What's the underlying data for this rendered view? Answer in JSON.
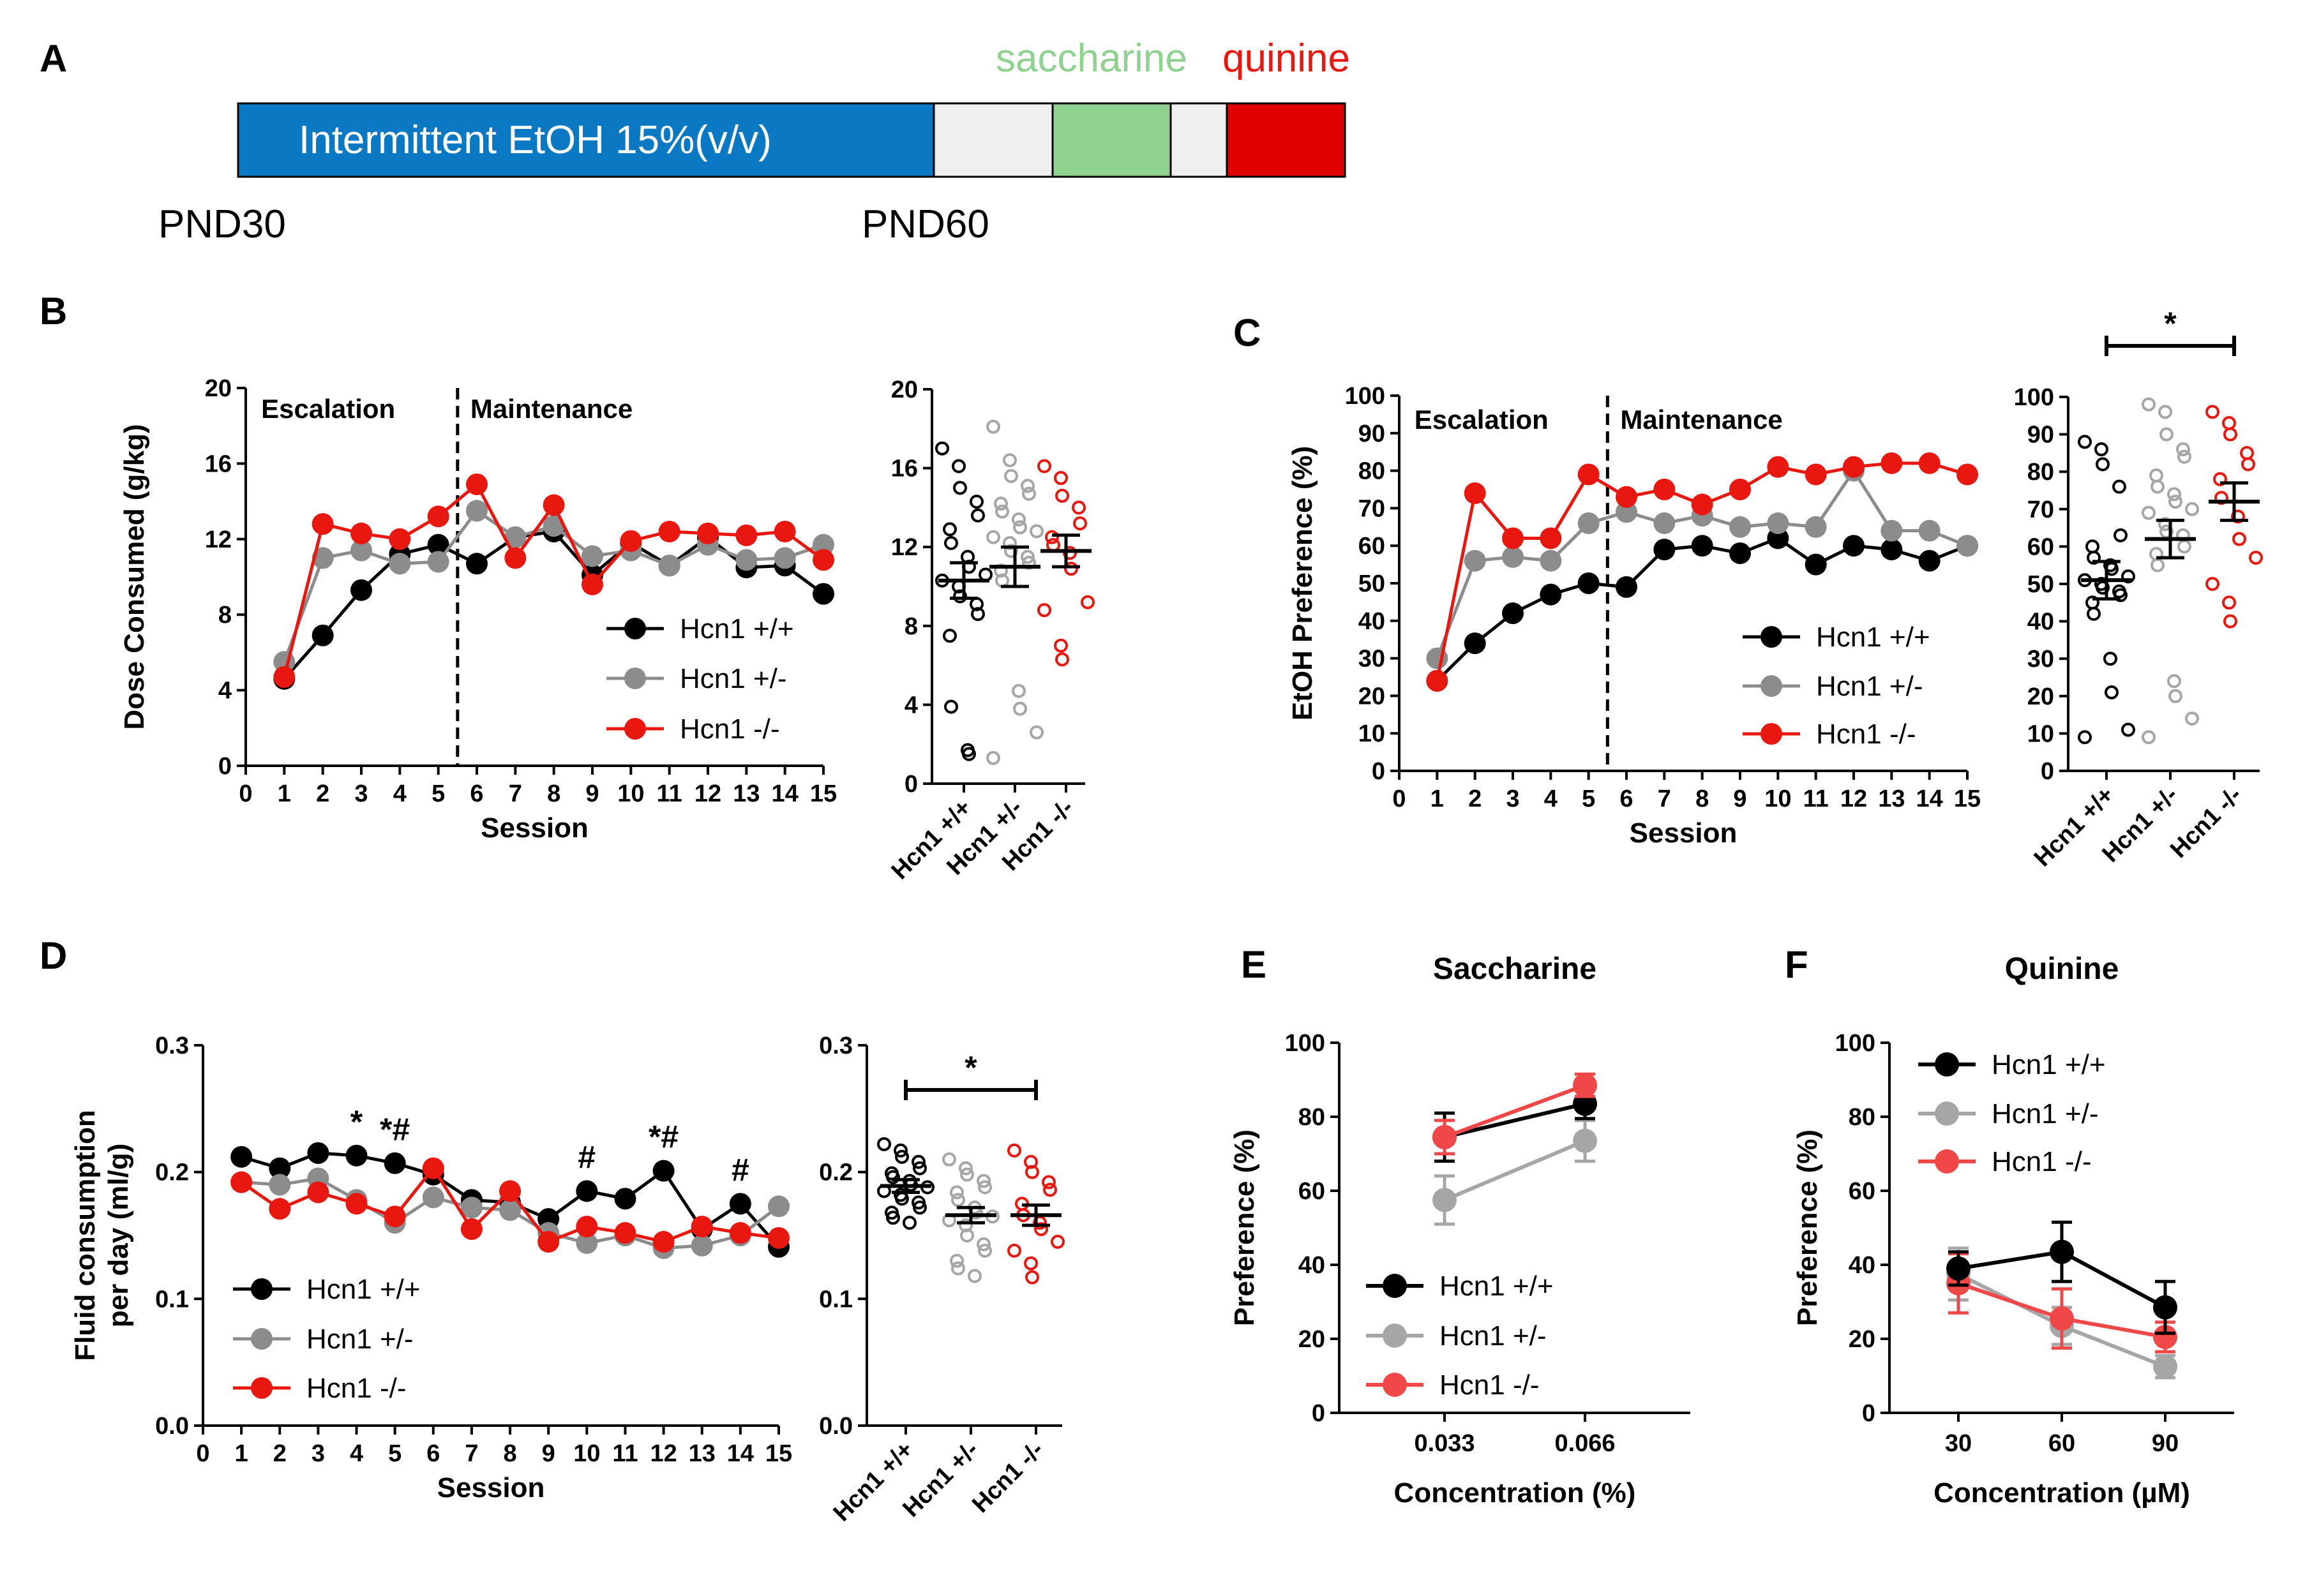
{
  "colors": {
    "wt": "#000000",
    "het": "#8c8c8c",
    "ko": "#e8170f",
    "het_light": "#a6a6a6",
    "ko_light": "#f04848",
    "ethanol": "#0a78c2",
    "saccharine": "#8fd18f",
    "quinine": "#e00000",
    "blank": "#efefef",
    "sacch_text": "#8fd18f",
    "quin_text": "#e8170f"
  },
  "panel_a": {
    "letter": "A",
    "ethanol_label": "Intermittent EtOH 15%(v/v)",
    "saccharine_label": "saccharine",
    "quinine_label": "quinine",
    "pnd_start": "PND30",
    "pnd_end": "PND60"
  },
  "chart_data": [
    {
      "id": "B_line",
      "panel": "B",
      "type": "line",
      "title": "",
      "xlabel": "Session",
      "ylabel": "Dose Consumed (g/kg)",
      "xlim": [
        0,
        15
      ],
      "ylim": [
        0,
        20
      ],
      "xticks": [
        "0",
        "1",
        "2",
        "3",
        "4",
        "5",
        "6",
        "7",
        "8",
        "9",
        "10",
        "11",
        "12",
        "13",
        "14",
        "15"
      ],
      "yticks": [
        "0",
        "4",
        "8",
        "12",
        "16",
        "20"
      ],
      "phases": [
        "Escalation",
        "Maintenance"
      ],
      "x": [
        1,
        2,
        3,
        4,
        5,
        6,
        7,
        8,
        9,
        10,
        11,
        12,
        13,
        14,
        15
      ],
      "series": [
        {
          "name": "Hcn1 +/+",
          "values": [
            4.6,
            6.9,
            9.3,
            11.2,
            11.7,
            10.7,
            12.1,
            12.4,
            10.1,
            11.8,
            10.6,
            12.1,
            10.5,
            10.6,
            9.1
          ]
        },
        {
          "name": "Hcn1 +/-",
          "values": [
            5.5,
            11.0,
            11.4,
            10.7,
            10.8,
            13.5,
            12.1,
            12.7,
            11.1,
            11.4,
            10.6,
            11.7,
            10.9,
            11.0,
            11.7
          ]
        },
        {
          "name": "Hcn1 -/-",
          "values": [
            4.7,
            12.8,
            12.3,
            12.0,
            13.2,
            14.9,
            11.0,
            13.8,
            9.6,
            11.9,
            12.4,
            12.3,
            12.2,
            12.4,
            10.9
          ]
        }
      ]
    },
    {
      "id": "B_scatter",
      "panel": "B",
      "type": "scatter",
      "ylim": [
        0,
        20
      ],
      "yticks": [
        "0",
        "4",
        "8",
        "12",
        "16",
        "20"
      ],
      "categories": [
        "Hcn1 +/+",
        "Hcn1 +/-",
        "Hcn1 -/-"
      ],
      "means": [
        10.3,
        11.0,
        11.8
      ],
      "sems": [
        0.9,
        1.0,
        0.8
      ],
      "points": [
        [
          17.0,
          16.1,
          15.0,
          14.3,
          13.6,
          12.9,
          12.2,
          11.5,
          11.0,
          10.6,
          10.3,
          10.0,
          9.5,
          9.1,
          8.6,
          7.5,
          3.9,
          1.7,
          1.5
        ],
        [
          18.1,
          16.4,
          15.6,
          15.1,
          14.7,
          14.2,
          13.8,
          13.4,
          13.0,
          12.8,
          12.5,
          12.2,
          11.8,
          11.5,
          11.2,
          10.8,
          10.3,
          4.7,
          3.8,
          2.6,
          1.3
        ],
        [
          16.1,
          15.5,
          14.6,
          14.0,
          13.2,
          12.5,
          12.1,
          11.7,
          10.9,
          9.2,
          8.8,
          7.0,
          6.3
        ]
      ]
    },
    {
      "id": "C_line",
      "panel": "C",
      "type": "line",
      "xlabel": "Session",
      "ylabel": "EtOH Preference (%)",
      "xlim": [
        0,
        15
      ],
      "ylim": [
        0,
        100
      ],
      "xticks": [
        "0",
        "1",
        "2",
        "3",
        "4",
        "5",
        "6",
        "7",
        "8",
        "9",
        "10",
        "11",
        "12",
        "13",
        "14",
        "15"
      ],
      "yticks": [
        "0",
        "10",
        "20",
        "30",
        "40",
        "50",
        "60",
        "70",
        "80",
        "90",
        "100"
      ],
      "phases": [
        "Escalation",
        "Maintenance"
      ],
      "x": [
        1,
        2,
        3,
        4,
        5,
        6,
        7,
        8,
        9,
        10,
        11,
        12,
        13,
        14,
        15
      ],
      "series": [
        {
          "name": "Hcn1 +/+",
          "values": [
            24,
            34,
            42,
            47,
            50,
            49,
            59,
            60,
            58,
            62,
            55,
            60,
            59,
            56,
            60
          ]
        },
        {
          "name": "Hcn1 +/-",
          "values": [
            30,
            56,
            57,
            56,
            66,
            69,
            66,
            68,
            65,
            66,
            65,
            80,
            64,
            64,
            60
          ]
        },
        {
          "name": "Hcn1 -/-",
          "values": [
            24,
            74,
            62,
            62,
            79,
            73,
            75,
            71,
            75,
            81,
            79,
            81,
            82,
            82,
            79
          ]
        }
      ]
    },
    {
      "id": "C_scatter",
      "panel": "C",
      "type": "scatter",
      "ylim": [
        0,
        100
      ],
      "yticks": [
        "0",
        "10",
        "20",
        "30",
        "40",
        "50",
        "60",
        "70",
        "80",
        "90",
        "100"
      ],
      "categories": [
        "Hcn1 +/+",
        "Hcn1 +/-",
        "Hcn1 -/-"
      ],
      "means": [
        51,
        62,
        72
      ],
      "sems": [
        5,
        5,
        5
      ],
      "significance": "*",
      "points": [
        [
          88,
          86,
          82,
          76,
          63,
          60,
          57,
          55,
          54,
          52,
          51,
          50,
          49,
          48,
          47,
          45,
          42,
          30,
          21,
          11,
          9
        ],
        [
          98,
          96,
          90,
          86,
          84,
          79,
          76,
          74,
          72,
          70,
          69,
          66,
          64,
          63,
          60,
          58,
          55,
          24,
          20,
          14,
          9
        ],
        [
          96,
          93,
          90,
          85,
          82,
          78,
          73,
          68,
          62,
          57,
          50,
          45,
          40
        ]
      ]
    },
    {
      "id": "D_line",
      "panel": "D",
      "type": "line",
      "xlabel": "Session",
      "ylabel": "Fluid consumption per day (ml/g)",
      "xlim": [
        0,
        15
      ],
      "ylim": [
        0,
        0.3
      ],
      "xticks": [
        "0",
        "1",
        "2",
        "3",
        "4",
        "5",
        "6",
        "7",
        "8",
        "9",
        "10",
        "11",
        "12",
        "13",
        "14",
        "15"
      ],
      "yticks": [
        "0.0",
        "0.1",
        "0.2",
        "0.3"
      ],
      "x": [
        1,
        2,
        3,
        4,
        5,
        6,
        7,
        8,
        9,
        10,
        11,
        12,
        13,
        14,
        15
      ],
      "series": [
        {
          "name": "Hcn1 +/+",
          "values": [
            0.212,
            0.203,
            0.215,
            0.213,
            0.207,
            0.198,
            0.178,
            0.176,
            0.163,
            0.185,
            0.179,
            0.201,
            0.155,
            0.175,
            0.141
          ]
        },
        {
          "name": "Hcn1 +/-",
          "values": [
            0.192,
            0.19,
            0.195,
            0.178,
            0.16,
            0.18,
            0.172,
            0.17,
            0.152,
            0.144,
            0.15,
            0.14,
            0.142,
            0.15,
            0.173
          ]
        },
        {
          "name": "Hcn1 -/-",
          "values": [
            0.192,
            0.171,
            0.184,
            0.175,
            0.165,
            0.203,
            0.155,
            0.185,
            0.145,
            0.157,
            0.152,
            0.145,
            0.157,
            0.152,
            0.148
          ]
        }
      ],
      "annotations": [
        {
          "x": 4,
          "text": "*"
        },
        {
          "x": 5,
          "text": "*#"
        },
        {
          "x": 10,
          "text": "#"
        },
        {
          "x": 12,
          "text": "*#"
        },
        {
          "x": 14,
          "text": "#"
        }
      ]
    },
    {
      "id": "D_scatter",
      "panel": "D",
      "type": "scatter",
      "ylim": [
        0,
        0.3
      ],
      "yticks": [
        "0.0",
        "0.1",
        "0.2",
        "0.3"
      ],
      "categories": [
        "Hcn1 +/+",
        "Hcn1 +/-",
        "Hcn1 -/-"
      ],
      "means": [
        0.189,
        0.166,
        0.166
      ],
      "sems": [
        0.005,
        0.006,
        0.008
      ],
      "significance": "*",
      "points": [
        [
          0.222,
          0.217,
          0.212,
          0.208,
          0.203,
          0.199,
          0.196,
          0.193,
          0.19,
          0.188,
          0.185,
          0.182,
          0.179,
          0.176,
          0.172,
          0.168,
          0.164,
          0.16
        ],
        [
          0.21,
          0.203,
          0.198,
          0.193,
          0.188,
          0.184,
          0.178,
          0.172,
          0.168,
          0.165,
          0.162,
          0.158,
          0.15,
          0.143,
          0.138,
          0.13,
          0.124,
          0.118
        ],
        [
          0.217,
          0.208,
          0.2,
          0.192,
          0.186,
          0.175,
          0.166,
          0.16,
          0.155,
          0.145,
          0.138,
          0.128,
          0.117
        ]
      ]
    },
    {
      "id": "E",
      "panel": "E",
      "type": "line",
      "title": "Saccharine",
      "xlabel": "Concentration (%)",
      "ylabel": "Preference (%)",
      "categories": [
        "0.033",
        "0.066"
      ],
      "ylim": [
        0,
        100
      ],
      "yticks": [
        "0",
        "20",
        "40",
        "60",
        "80",
        "100"
      ],
      "series": [
        {
          "name": "Hcn1 +/+",
          "values": [
            74.5,
            83.5
          ],
          "sems": [
            6.5,
            4
          ]
        },
        {
          "name": "Hcn1 +/-",
          "values": [
            57.5,
            73.5
          ],
          "sems": [
            6.5,
            5.5
          ]
        },
        {
          "name": "Hcn1 -/-",
          "values": [
            74.5,
            88.5
          ],
          "sems": [
            4.5,
            3
          ]
        }
      ]
    },
    {
      "id": "F",
      "panel": "F",
      "type": "line",
      "title": "Quinine",
      "xlabel": "Concentration (µM)",
      "ylabel": "Preference (%)",
      "categories": [
        "30",
        "60",
        "90"
      ],
      "ylim": [
        0,
        100
      ],
      "yticks": [
        "0",
        "20",
        "40",
        "60",
        "80",
        "100"
      ],
      "series": [
        {
          "name": "Hcn1 +/+",
          "values": [
            39,
            43.5,
            28.5
          ],
          "sems": [
            4.5,
            8,
            7
          ]
        },
        {
          "name": "Hcn1 +/-",
          "values": [
            37.5,
            23.5,
            12.5
          ],
          "sems": [
            7,
            5,
            3
          ]
        },
        {
          "name": "Hcn1 -/-",
          "values": [
            35,
            25.5,
            20.5
          ],
          "sems": [
            8,
            8,
            4
          ]
        }
      ]
    }
  ]
}
